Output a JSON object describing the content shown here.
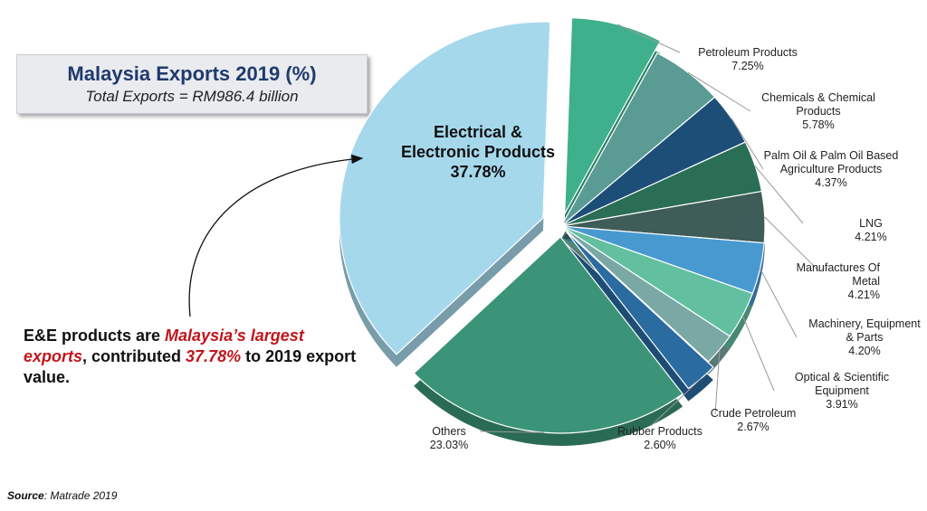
{
  "title": {
    "main": "Malaysia Exports 2019 (%)",
    "sub": "Total Exports = RM986.4 billion"
  },
  "note": {
    "part1": "E&E products are ",
    "highlight1": "Malaysia’s largest exports",
    "part2": ", contributed ",
    "highlight2": "37.78%",
    "part3": " to 2019 export value."
  },
  "source": {
    "label": "Source",
    "text": ": Matrade 2019"
  },
  "colors": {
    "accent_red": "#c0161c",
    "title_blue": "#1f3a6e"
  },
  "chart_data": {
    "type": "pie",
    "start_angle_deg": 2,
    "categories": [
      "Petroleum Products",
      "Chemicals & Chemical Products",
      "Palm Oil & Palm Oil Based Agriculture Products",
      "LNG",
      "Manufactures Of Metal",
      "Machinery, Equipment & Parts",
      "Optical & Scientific Equipment",
      "Crude Petroleum",
      "Rubber Products",
      "Others",
      "Electrical & Electronic Products"
    ],
    "values": [
      7.25,
      5.78,
      4.37,
      4.21,
      4.21,
      4.2,
      3.91,
      2.67,
      2.6,
      23.03,
      37.78
    ],
    "value_labels": [
      "7.25%",
      "5.78%",
      "4.37%",
      "4.21%",
      "4.21%",
      "4.20%",
      "3.91%",
      "2.67%",
      "2.60%",
      "23.03%",
      "37.78%"
    ],
    "label_lines": [
      [
        "Petroleum Products",
        "7.25%"
      ],
      [
        "Chemicals & Chemical",
        "Products",
        "5.78%"
      ],
      [
        "Palm Oil & Palm Oil Based",
        "Agriculture Products",
        "4.37%"
      ],
      [
        "LNG",
        "4.21%"
      ],
      [
        "Manufactures Of",
        "Metal",
        "4.21%"
      ],
      [
        "Machinery, Equipment",
        "& Parts",
        "4.20%"
      ],
      [
        "Optical & Scientific",
        "Equipment",
        "3.91%"
      ],
      [
        "Crude Petroleum",
        "2.67%"
      ],
      [
        "Rubber Products",
        "2.60%"
      ],
      [
        "Others",
        "23.03%"
      ],
      [
        "Electrical &",
        "Electronic Products",
        "37.78%"
      ]
    ],
    "colors": [
      "#3fb08c",
      "#5a9c94",
      "#1c4e78",
      "#2a6e56",
      "#3e5c58",
      "#4899d0",
      "#62c0a0",
      "#7aa8a4",
      "#2a6ba0",
      "#3b9477",
      "#a6d8ec"
    ],
    "exploded": [
      "Petroleum Products",
      "Electrical & Electronic Products",
      "Others",
      "Rubber Products"
    ]
  }
}
